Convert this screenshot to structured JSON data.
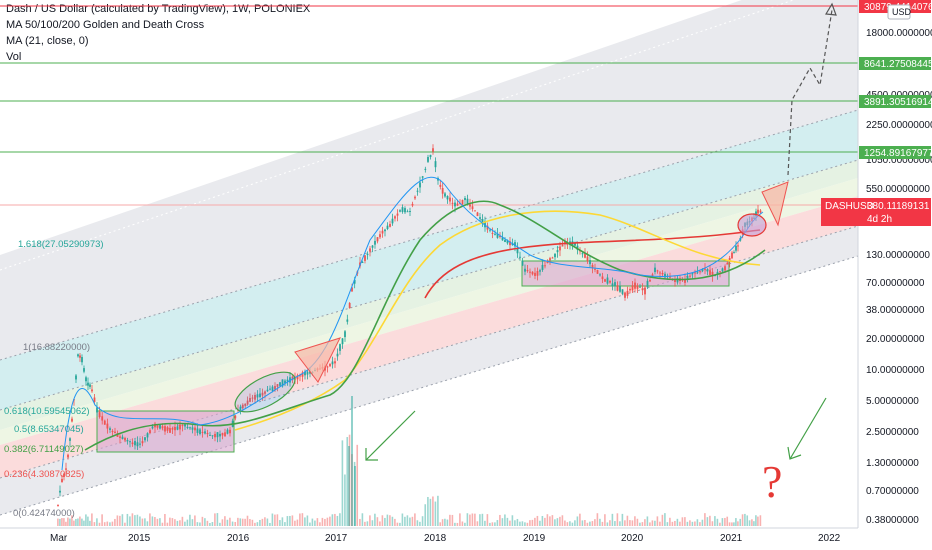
{
  "header": {
    "title": "Dash / US Dollar (calculated by TradingView), 1W, POLONIEX",
    "line2": "MA 50/100/200 Golden and Death Cross",
    "line3": "MA (21, close, 0)",
    "line4": "Vol"
  },
  "colors": {
    "up": "#26a69a",
    "down": "#ef5350",
    "ma21": "#2196f3",
    "ma50": "#43a047",
    "ma100": "#fdd835",
    "ma200": "#e53935",
    "hline": "#4caf50",
    "price": "#f23645"
  },
  "chart_data": {
    "type": "candlestick",
    "symbol": "DASHUSD",
    "y_scale": "log",
    "y_ticks": [
      "18000.00000000",
      "4500.00000000",
      "2250.00000000",
      "1050.00000000",
      "550.00000000",
      "130.00000000",
      "70.00000000",
      "38.00000000",
      "20.00000000",
      "10.00000000",
      "5.00000000",
      "2.50000000",
      "1.30000000",
      "0.70000000",
      "0.38000000"
    ],
    "x_ticks": [
      "Mar",
      "2015",
      "2016",
      "2017",
      "2018",
      "2019",
      "2020",
      "2021",
      "2022"
    ],
    "currency": "USD",
    "last_price": {
      "label": "DASHUSD",
      "value": "380.11189131",
      "countdown": "4d 2h"
    },
    "price_levels": [
      "30879.44140765",
      "8641.27508445",
      "3891.30516914",
      "1254.89167977"
    ],
    "fib_labels": [
      {
        "text": "1.618(27.05290973)",
        "color": "#26a69a"
      },
      {
        "text": "1(16.88220000)",
        "color": "#787b86"
      },
      {
        "text": "0.618(10.59545062)",
        "color": "#26a69a"
      },
      {
        "text": "0.5(8.65347045)",
        "color": "#26a69a"
      },
      {
        "text": "0.382(6.71149027)",
        "color": "#43a047"
      },
      {
        "text": "0.236(4.30870825)",
        "color": "#ef5350"
      },
      {
        "text": "0(0.42474000)",
        "color": "#787b86"
      }
    ],
    "ranges": [
      {
        "from": "2014-08",
        "to": "2015-12",
        "low": 1.6,
        "high": 4.2
      },
      {
        "from": "2018-12",
        "to": "2020-12",
        "low": 65,
        "high": 110
      }
    ],
    "annotations": [
      "question mark",
      "green arrows",
      "projection dashed path"
    ]
  }
}
